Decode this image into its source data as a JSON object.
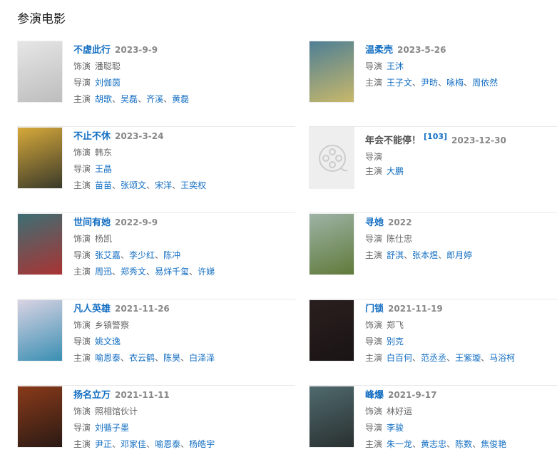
{
  "section_title": "参演电影",
  "items": [
    {
      "title": "不虚此行",
      "title_link": true,
      "date": "2023-9-9",
      "poster_colors": [
        "#e6e6e6",
        "#bdbdbd"
      ],
      "roles": [
        {
          "label": "饰演",
          "names": [
            "潘聪聪"
          ],
          "link": false
        },
        {
          "label": "导演",
          "names": [
            "刘伽茵"
          ],
          "link": true
        },
        {
          "label": "主演",
          "names": [
            "胡歌",
            "吴磊",
            "齐溪",
            "黄磊"
          ],
          "link": true
        }
      ]
    },
    {
      "title": "温柔壳",
      "title_link": true,
      "date": "2023-5-26",
      "poster_colors": [
        "#4e7f95",
        "#c8b86a"
      ],
      "roles": [
        {
          "label": "导演",
          "names": [
            "王沐"
          ],
          "link": true
        },
        {
          "label": "主演",
          "names": [
            "王子文",
            "尹昉",
            "咏梅",
            "周依然"
          ],
          "link": true
        }
      ]
    },
    {
      "title": "不止不休",
      "title_link": true,
      "date": "2023-3-24",
      "poster_colors": [
        "#d7a93a",
        "#3a3a2a"
      ],
      "roles": [
        {
          "label": "饰演",
          "names": [
            "韩东"
          ],
          "link": false
        },
        {
          "label": "导演",
          "names": [
            "王晶"
          ],
          "link": true
        },
        {
          "label": "主演",
          "names": [
            "苗苗",
            "张颂文",
            "宋洋",
            "王奕权"
          ],
          "link": true
        }
      ]
    },
    {
      "title": "年会不能停！",
      "title_link": false,
      "superscript": "[103]",
      "date": "2023-12-30",
      "placeholder": true,
      "poster_icon": "film-reel-icon",
      "compact": true,
      "roles": [
        {
          "label": "导演",
          "names": [],
          "link": false
        },
        {
          "label": "主演",
          "names": [
            "大鹏"
          ],
          "link": true
        }
      ]
    },
    {
      "title": "世间有她",
      "title_link": true,
      "date": "2022-9-9",
      "poster_colors": [
        "#3c6f74",
        "#a33"
      ],
      "roles": [
        {
          "label": "饰演",
          "names": [
            "杨凯"
          ],
          "link": false
        },
        {
          "label": "导演",
          "names": [
            "张艾嘉",
            "李少红",
            "陈冲"
          ],
          "link": true
        },
        {
          "label": "主演",
          "names": [
            "周迅",
            "郑秀文",
            "易烊千玺",
            "许娣"
          ],
          "link": true
        }
      ]
    },
    {
      "title": "寻她",
      "title_link": true,
      "date": "2022",
      "poster_colors": [
        "#9fb3a6",
        "#5f7a3a"
      ],
      "roles": [
        {
          "label": "导演",
          "names": [
            "陈仕忠"
          ],
          "link": false
        },
        {
          "label": "主演",
          "names": [
            "舒淇",
            "张本煜",
            "郎月婷"
          ],
          "link": true
        }
      ]
    },
    {
      "title": "凡人英雄",
      "title_link": true,
      "date": "2021-11-26",
      "poster_colors": [
        "#d9d3e3",
        "#3a8fb3"
      ],
      "roles": [
        {
          "label": "饰演",
          "names": [
            "乡镇警察"
          ],
          "link": false
        },
        {
          "label": "导演",
          "names": [
            "姚文逸"
          ],
          "link": true
        },
        {
          "label": "主演",
          "names": [
            "喻恩泰",
            "衣云鹤",
            "陈昊",
            "白泽泽"
          ],
          "link": true
        }
      ]
    },
    {
      "title": "门锁",
      "title_link": true,
      "date": "2021-11-19",
      "poster_colors": [
        "#2a1f1f",
        "#1a1414"
      ],
      "roles": [
        {
          "label": "饰演",
          "names": [
            "郑飞"
          ],
          "link": false
        },
        {
          "label": "导演",
          "names": [
            "别克"
          ],
          "link": true
        },
        {
          "label": "主演",
          "names": [
            "白百何",
            "范丞丞",
            "王紫璇",
            "马浴柯"
          ],
          "link": true
        }
      ]
    },
    {
      "title": "扬名立万",
      "title_link": true,
      "date": "2021-11-11",
      "poster_colors": [
        "#8a3a1a",
        "#2a1a14"
      ],
      "roles": [
        {
          "label": "饰演",
          "names": [
            "照相馆伙计"
          ],
          "link": false
        },
        {
          "label": "导演",
          "names": [
            "刘循子墨"
          ],
          "link": true
        },
        {
          "label": "主演",
          "names": [
            "尹正",
            "邓家佳",
            "喻恩泰",
            "杨皓宇"
          ],
          "link": true
        }
      ]
    },
    {
      "title": "峰爆",
      "title_link": true,
      "date": "2021-9-17",
      "poster_colors": [
        "#4f6a6e",
        "#2a3030"
      ],
      "roles": [
        {
          "label": "饰演",
          "names": [
            "林好运"
          ],
          "link": false
        },
        {
          "label": "导演",
          "names": [
            "李骏"
          ],
          "link": true
        },
        {
          "label": "主演",
          "names": [
            "朱一龙",
            "黄志忠",
            "陈数",
            "焦俊艳"
          ],
          "link": true
        }
      ]
    }
  ]
}
